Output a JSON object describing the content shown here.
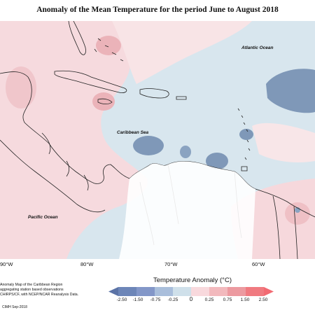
{
  "title": "Anomaly of the Mean Temperature for the period June to August 2018",
  "map": {
    "ocean_labels": [
      "Atlantic Ocean",
      "Caribbean Sea",
      "Pacific Ocean"
    ],
    "longitude_ticks": [
      "90°W",
      "80°W",
      "70°W",
      "60°W"
    ]
  },
  "legend": {
    "title": "Temperature Anomaly (°C)",
    "labels": [
      "-2.50",
      "-1.50",
      "-0.75",
      "-0.25",
      "0",
      "0.25",
      "0.75",
      "1.50",
      "2.50"
    ],
    "colors": [
      "#5b73a6",
      "#8397c8",
      "#a9bedb",
      "#cfe0ea",
      "#ffffff",
      "#f8d9dd",
      "#f2b9bd",
      "#ec9aa0",
      "#f07a80"
    ]
  },
  "credit": {
    "lines": [
      "Anomaly Map of the Caribbean Region",
      "aggregating station based observations",
      "CHIRPS/CF, with NCEP/NCAR Reanalysis Data."
    ],
    "stamp": "CIMH Sep-2018"
  }
}
